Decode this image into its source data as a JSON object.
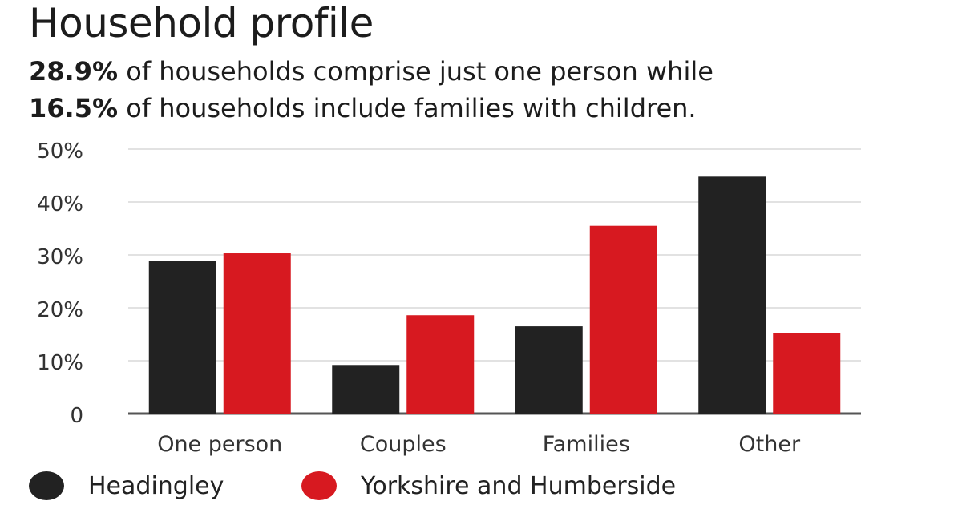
{
  "header": {
    "title": "Household profile",
    "line1_bold": "28.9%",
    "line1_rest": " of households comprise just one person while",
    "line2_bold": "16.5%",
    "line2_rest": " of households include families with children."
  },
  "chart_data": {
    "type": "bar",
    "categories": [
      "One person",
      "Couples",
      "Families",
      "Other"
    ],
    "series": [
      {
        "name": "Headingley",
        "values": [
          28.9,
          9.2,
          16.5,
          44.8
        ],
        "color": "#222222"
      },
      {
        "name": "Yorkshire and Humberside",
        "values": [
          30.3,
          18.6,
          35.5,
          15.2
        ],
        "color": "#d71920"
      }
    ],
    "ylim": [
      0,
      50
    ],
    "yticks": [
      0,
      10,
      20,
      30,
      40,
      50
    ],
    "ytick_labels": [
      "0",
      "10%",
      "20%",
      "30%",
      "40%",
      "50%"
    ],
    "grid": true,
    "legend": "bottom-left",
    "title": "Household profile",
    "xlabel": "",
    "ylabel": ""
  }
}
